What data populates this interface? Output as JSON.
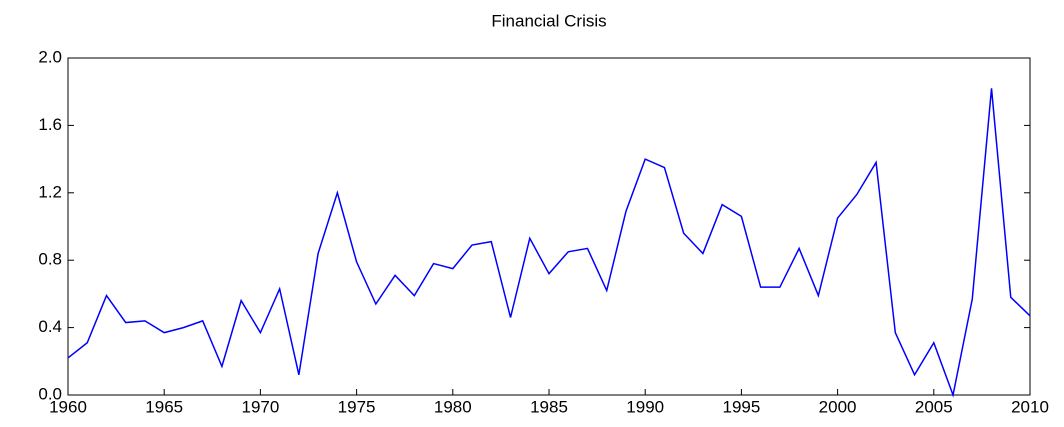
{
  "chart_data": {
    "type": "line",
    "title": "Financial Crisis",
    "x": [
      1960,
      1961,
      1962,
      1963,
      1964,
      1965,
      1966,
      1967,
      1968,
      1969,
      1970,
      1971,
      1972,
      1973,
      1974,
      1975,
      1976,
      1977,
      1978,
      1979,
      1980,
      1981,
      1982,
      1983,
      1984,
      1985,
      1986,
      1987,
      1988,
      1989,
      1990,
      1991,
      1992,
      1993,
      1994,
      1995,
      1996,
      1997,
      1998,
      1999,
      2000,
      2001,
      2002,
      2003,
      2004,
      2005,
      2006,
      2007,
      2008,
      2009,
      2010
    ],
    "series": [
      {
        "color": "#0000ff",
        "values": [
          0.22,
          0.31,
          0.59,
          0.43,
          0.44,
          0.37,
          0.4,
          0.44,
          0.17,
          0.56,
          0.37,
          0.63,
          0.12,
          0.84,
          1.2,
          0.79,
          0.54,
          0.71,
          0.59,
          0.78,
          0.75,
          0.89,
          0.91,
          0.46,
          0.93,
          0.72,
          0.85,
          0.87,
          0.62,
          1.09,
          1.4,
          1.35,
          0.96,
          0.84,
          1.13,
          1.06,
          0.64,
          0.64,
          0.87,
          0.59,
          1.05,
          1.19,
          1.38,
          0.37,
          0.12,
          0.31,
          0.0,
          0.57,
          1.82,
          0.58,
          0.47
        ]
      }
    ],
    "xlim": [
      1960,
      2010
    ],
    "xticks": [
      1960,
      1965,
      1970,
      1975,
      1980,
      1985,
      1990,
      1995,
      2000,
      2005,
      2010
    ],
    "ylim": [
      0,
      2
    ],
    "yticks": [
      {
        "value": 0,
        "label": "0.0"
      },
      0.4,
      0.8,
      1.2,
      1.6,
      {
        "value": 2,
        "label": "2.0"
      }
    ],
    "grid": false
  }
}
